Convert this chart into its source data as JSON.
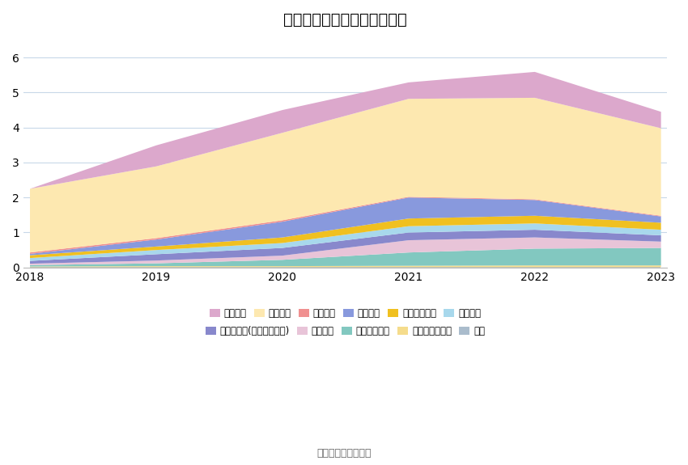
{
  "title": "历年主要负债堆积图（亿元）",
  "source": "数据来源：恒生聚源",
  "years": [
    2018,
    2019,
    2020,
    2021,
    2022,
    2023
  ],
  "series": [
    {
      "name": "其它",
      "color": "#aabccc",
      "values": [
        0.02,
        0.02,
        0.02,
        0.02,
        0.02,
        0.02
      ]
    },
    {
      "name": "递延所得税负债",
      "color": "#f5dc8c",
      "values": [
        0.02,
        0.03,
        0.03,
        0.04,
        0.05,
        0.05
      ]
    },
    {
      "name": "长期递延收益",
      "color": "#82c8c0",
      "values": [
        0.04,
        0.08,
        0.18,
        0.38,
        0.48,
        0.5
      ]
    },
    {
      "name": "租赁负债",
      "color": "#e8c4d8",
      "values": [
        0.04,
        0.08,
        0.12,
        0.35,
        0.32,
        0.18
      ]
    },
    {
      "name": "其他应付款(含利息和股利)",
      "color": "#8888cc",
      "values": [
        0.08,
        0.18,
        0.22,
        0.22,
        0.22,
        0.18
      ]
    },
    {
      "name": "应交税费",
      "color": "#a8d8ec",
      "values": [
        0.08,
        0.12,
        0.14,
        0.18,
        0.18,
        0.16
      ]
    },
    {
      "name": "应付职工薪酬",
      "color": "#f0c020",
      "values": [
        0.08,
        0.1,
        0.16,
        0.22,
        0.22,
        0.2
      ]
    },
    {
      "name": "合同负债",
      "color": "#8899dd",
      "values": [
        0.04,
        0.2,
        0.45,
        0.6,
        0.45,
        0.18
      ]
    },
    {
      "name": "预收款项",
      "color": "#f09090",
      "values": [
        0.04,
        0.04,
        0.04,
        0.02,
        0.02,
        0.02
      ]
    },
    {
      "name": "应付账款",
      "color": "#fde8b0",
      "values": [
        1.82,
        2.05,
        2.5,
        2.8,
        2.9,
        2.5
      ]
    },
    {
      "name": "短期借款",
      "color": "#dca8cc",
      "values": [
        0.0,
        0.6,
        0.65,
        0.47,
        0.74,
        0.47
      ]
    }
  ],
  "ylim": [
    0,
    6.5
  ],
  "yticks": [
    0,
    1,
    2,
    3,
    4,
    5,
    6
  ],
  "background_color": "#ffffff",
  "grid_color": "#c8d8e8",
  "title_fontsize": 14
}
